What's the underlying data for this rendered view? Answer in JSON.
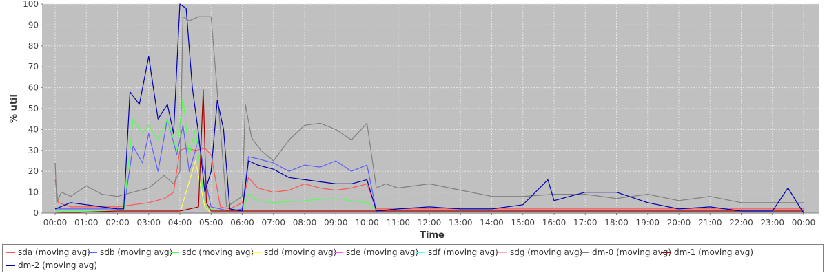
{
  "chart_data": {
    "type": "line",
    "title": "",
    "xlabel": "Time",
    "ylabel": "% util",
    "ylim": [
      0,
      100
    ],
    "yticks": [
      0,
      10,
      20,
      30,
      40,
      50,
      60,
      70,
      80,
      90,
      100
    ],
    "xlim": [
      0,
      24
    ],
    "x_tick_labels": [
      "00:00",
      "01:00",
      "02:00",
      "03:00",
      "04:00",
      "05:00",
      "06:00",
      "07:00",
      "08:00",
      "09:00",
      "10:00",
      "11:00",
      "12:00",
      "13:00",
      "14:00",
      "15:00",
      "16:00",
      "17:00",
      "18:00",
      "19:00",
      "20:00",
      "21:00",
      "22:00",
      "23:00",
      "00:00"
    ],
    "x_unit": "hours",
    "grid": true,
    "legend_position": "bottom",
    "background_color": "#c0c0c0",
    "series": [
      {
        "name": "sda (moving avg)",
        "color": "#ff5555",
        "x": [
          0,
          0.1,
          0.5,
          1,
          1.5,
          2,
          2.5,
          3,
          3.5,
          3.8,
          4,
          4.2,
          4.5,
          4.8,
          5,
          5.3,
          5.6,
          6,
          6.2,
          6.5,
          7,
          7.5,
          8,
          8.5,
          9,
          9.5,
          10,
          10.3,
          11,
          12,
          13,
          14,
          15,
          16,
          17,
          18,
          19,
          20,
          21,
          22,
          23,
          24
        ],
        "y": [
          16,
          5,
          3,
          3,
          3,
          3,
          4,
          5,
          7,
          10,
          30,
          31,
          30,
          31,
          28,
          3,
          2,
          5,
          17,
          12,
          10,
          11,
          14,
          12,
          11,
          12,
          14,
          2,
          2,
          2,
          2,
          2,
          2,
          2,
          2,
          2,
          2,
          2,
          2,
          2,
          2,
          2
        ]
      },
      {
        "name": "sdb (moving avg)",
        "color": "#5f5fff",
        "x": [
          0,
          0.5,
          1,
          1.5,
          2,
          2.2,
          2.5,
          2.8,
          3,
          3.3,
          3.6,
          3.9,
          4.1,
          4.3,
          4.6,
          4.9,
          5,
          5.3,
          5.6,
          6,
          6.2,
          6.5,
          7,
          7.5,
          8,
          8.5,
          9,
          9.5,
          10,
          10.3,
          11,
          12,
          13,
          14,
          15,
          16,
          17,
          18,
          19,
          20,
          21,
          22,
          23,
          24
        ],
        "y": [
          2,
          2,
          2,
          2,
          2,
          2,
          32,
          24,
          38,
          20,
          45,
          28,
          42,
          20,
          35,
          10,
          3,
          2,
          1,
          2,
          27,
          26,
          24,
          20,
          23,
          22,
          25,
          20,
          23,
          1,
          1,
          1,
          1,
          1,
          1,
          1,
          1,
          1,
          1,
          1,
          1,
          1,
          1,
          1
        ]
      },
      {
        "name": "sdc (moving avg)",
        "color": "#55ff55",
        "x": [
          0,
          1,
          2,
          2.2,
          2.5,
          2.8,
          3,
          3.3,
          3.6,
          3.9,
          4.1,
          4.3,
          4.5,
          4.8,
          5,
          5.3,
          6,
          6.2,
          6.5,
          7,
          8,
          9,
          10,
          10.3,
          11,
          12,
          13,
          14,
          15,
          16,
          17,
          18,
          19,
          20,
          21,
          22,
          23,
          24
        ],
        "y": [
          1,
          1,
          1,
          1,
          45,
          38,
          42,
          35,
          45,
          30,
          55,
          28,
          40,
          3,
          2,
          1,
          1,
          9,
          6,
          5,
          6,
          7,
          5,
          1,
          1,
          1,
          1,
          1,
          1,
          1,
          1,
          1,
          1,
          1,
          1,
          1,
          1,
          1
        ]
      },
      {
        "name": "sdd (moving avg)",
        "color": "#ffff55",
        "x": [
          0,
          2,
          4,
          4.5,
          4.8,
          5,
          6,
          8,
          10,
          12,
          14,
          16,
          18,
          20,
          22,
          24
        ],
        "y": [
          0,
          0,
          0,
          25,
          3,
          0,
          0,
          0,
          0,
          0,
          0,
          0,
          0,
          0,
          0,
          0
        ]
      },
      {
        "name": "sde (moving avg)",
        "color": "#ff55ff",
        "x": [
          0,
          4,
          8,
          12,
          16,
          20,
          24
        ],
        "y": [
          0,
          0,
          0,
          0,
          0,
          0,
          0
        ]
      },
      {
        "name": "sdf (moving avg)",
        "color": "#55ffff",
        "x": [
          0,
          4,
          8,
          12,
          16,
          20,
          24
        ],
        "y": [
          0,
          0,
          0,
          0,
          0,
          0,
          0
        ]
      },
      {
        "name": "sdg (moving avg)",
        "color": "#ffafaf",
        "x": [
          0,
          4,
          8,
          12,
          16,
          20,
          24
        ],
        "y": [
          0,
          0,
          0,
          0,
          0,
          0,
          0
        ]
      },
      {
        "name": "dm-0 (moving avg)",
        "color": "#808080",
        "x": [
          0,
          0.05,
          0.2,
          0.5,
          1,
          1.5,
          2,
          2.5,
          3,
          3.5,
          3.8,
          4,
          4.1,
          4.3,
          4.6,
          5,
          5.3,
          5.5,
          6,
          6.1,
          6.3,
          6.6,
          7,
          7.5,
          8,
          8.5,
          9,
          9.5,
          10,
          10.3,
          10.6,
          11,
          12,
          13,
          14,
          15,
          16,
          17,
          18,
          19,
          20,
          21,
          22,
          23,
          24
        ],
        "y": [
          24,
          5,
          10,
          8,
          13,
          9,
          8,
          10,
          12,
          18,
          14,
          20,
          94,
          92,
          94,
          94,
          40,
          3,
          8,
          52,
          36,
          30,
          25,
          35,
          42,
          43,
          40,
          35,
          43,
          12,
          14,
          12,
          14,
          11,
          8,
          8,
          9,
          9,
          7,
          9,
          6,
          8,
          5,
          5,
          5
        ]
      },
      {
        "name": "dm-1 (moving avg)",
        "color": "#aa0000",
        "x": [
          0,
          2,
          4,
          4.6,
          4.75,
          4.85,
          5,
          6,
          8,
          10,
          12,
          14,
          16,
          18,
          20,
          22,
          24
        ],
        "y": [
          0,
          1,
          1,
          3,
          59,
          5,
          1,
          1,
          1,
          1,
          1,
          1,
          1,
          1,
          1,
          1,
          1
        ]
      },
      {
        "name": "dm-2 (moving avg)",
        "color": "#0000aa",
        "x": [
          0,
          0.5,
          1,
          1.5,
          2,
          2.2,
          2.4,
          2.7,
          3,
          3.3,
          3.6,
          3.8,
          4,
          4.2,
          4.4,
          4.6,
          4.8,
          5,
          5.2,
          5.4,
          5.6,
          6,
          6.2,
          6.5,
          7,
          7.5,
          8,
          8.5,
          9,
          9.5,
          10,
          10.3,
          11,
          12,
          13,
          14,
          15,
          15.8,
          16,
          17,
          18,
          19,
          20,
          21,
          22,
          23,
          23.5,
          24
        ],
        "y": [
          2,
          5,
          4,
          3,
          2,
          2,
          58,
          52,
          75,
          45,
          52,
          38,
          100,
          98,
          60,
          38,
          10,
          20,
          54,
          40,
          2,
          1,
          25,
          23,
          21,
          17,
          16,
          15,
          14,
          14,
          16,
          1,
          2,
          3,
          2,
          2,
          4,
          16,
          6,
          10,
          10,
          5,
          2,
          3,
          1,
          1,
          12,
          0
        ]
      }
    ]
  }
}
